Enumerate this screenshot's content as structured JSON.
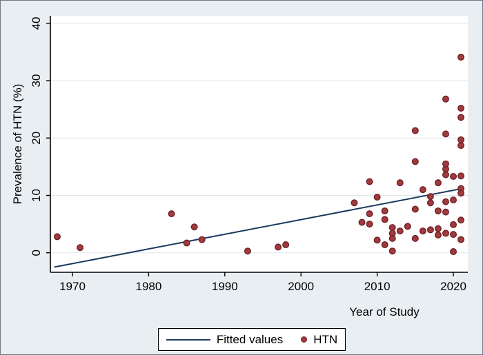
{
  "figure": {
    "background_color": "#e9eef2",
    "plot_background_color": "#ffffff",
    "grid_color": "#dde7ed",
    "axis_color": "#000000"
  },
  "legend": {
    "fitted_label": "Fitted values",
    "htn_label": "HTN",
    "line_color": "#1b3a5f",
    "marker_color": "#a13a3e",
    "marker_edge_color": "#6f2125"
  },
  "chart_data": {
    "type": "scatter",
    "title": "",
    "xlabel": "Year of Study",
    "ylabel": "Prevalence of HTN (%)",
    "xlim": [
      1967.1,
      2021.9
    ],
    "ylim": [
      -3.4,
      41.3
    ],
    "x_ticks": [
      1970,
      1980,
      1990,
      2000,
      2010,
      2020
    ],
    "y_ticks": [
      0,
      10,
      20,
      30,
      40
    ],
    "grid": "horizontal gridlines at y ticks",
    "legend_position": "bottom center",
    "series": [
      {
        "name": "Fitted values",
        "type": "line",
        "color": "#1b3a5f",
        "points": [
          [
            1967.6,
            -2.5
          ],
          [
            2021.2,
            11.2
          ]
        ]
      },
      {
        "name": "HTN",
        "type": "scatter",
        "marker_color": "#a13a3e",
        "marker_edge_color": "#6f2125",
        "points": [
          [
            1968,
            2.8
          ],
          [
            1971,
            0.9
          ],
          [
            1983,
            6.8
          ],
          [
            1985,
            1.7
          ],
          [
            1986,
            4.5
          ],
          [
            1987,
            2.3
          ],
          [
            1993,
            0.3
          ],
          [
            1997,
            1.0
          ],
          [
            1998,
            1.4
          ],
          [
            2007,
            8.7
          ],
          [
            2008,
            5.3
          ],
          [
            2009,
            12.4
          ],
          [
            2009,
            6.8
          ],
          [
            2009,
            5.0
          ],
          [
            2010,
            9.7
          ],
          [
            2010,
            2.2
          ],
          [
            2011,
            7.3
          ],
          [
            2011,
            5.8
          ],
          [
            2011,
            1.4
          ],
          [
            2012,
            4.4
          ],
          [
            2012,
            3.4
          ],
          [
            2012,
            2.5
          ],
          [
            2012,
            0.3
          ],
          [
            2013,
            12.2
          ],
          [
            2013,
            3.8
          ],
          [
            2014,
            4.6
          ],
          [
            2015,
            7.6
          ],
          [
            2015,
            2.5
          ],
          [
            2016,
            11.0
          ],
          [
            2016,
            3.8
          ],
          [
            2017,
            9.8
          ],
          [
            2017,
            8.7
          ],
          [
            2017,
            4.0
          ],
          [
            2018,
            12.2
          ],
          [
            2018,
            7.3
          ],
          [
            2018,
            4.2
          ],
          [
            2018,
            3.1
          ],
          [
            2019,
            14.6
          ],
          [
            2019,
            13.6
          ],
          [
            2019,
            8.9
          ],
          [
            2019,
            7.1
          ],
          [
            2019,
            3.4
          ],
          [
            2020,
            13.3
          ],
          [
            2020,
            9.2
          ],
          [
            2020,
            4.9
          ],
          [
            2020,
            3.2
          ],
          [
            2020,
            0.2
          ],
          [
            2021,
            13.4
          ],
          [
            2021,
            11.2
          ],
          [
            2021,
            10.4
          ],
          [
            2021,
            5.7
          ],
          [
            2021,
            2.3
          ],
          [
            2021,
            34.1
          ],
          [
            2019,
            26.8
          ],
          [
            2021,
            25.2
          ],
          [
            2021,
            23.6
          ],
          [
            2015,
            21.3
          ],
          [
            2019,
            20.7
          ],
          [
            2021,
            19.7
          ],
          [
            2021,
            18.7
          ],
          [
            2015,
            15.9
          ],
          [
            2019,
            15.5
          ]
        ]
      }
    ]
  }
}
